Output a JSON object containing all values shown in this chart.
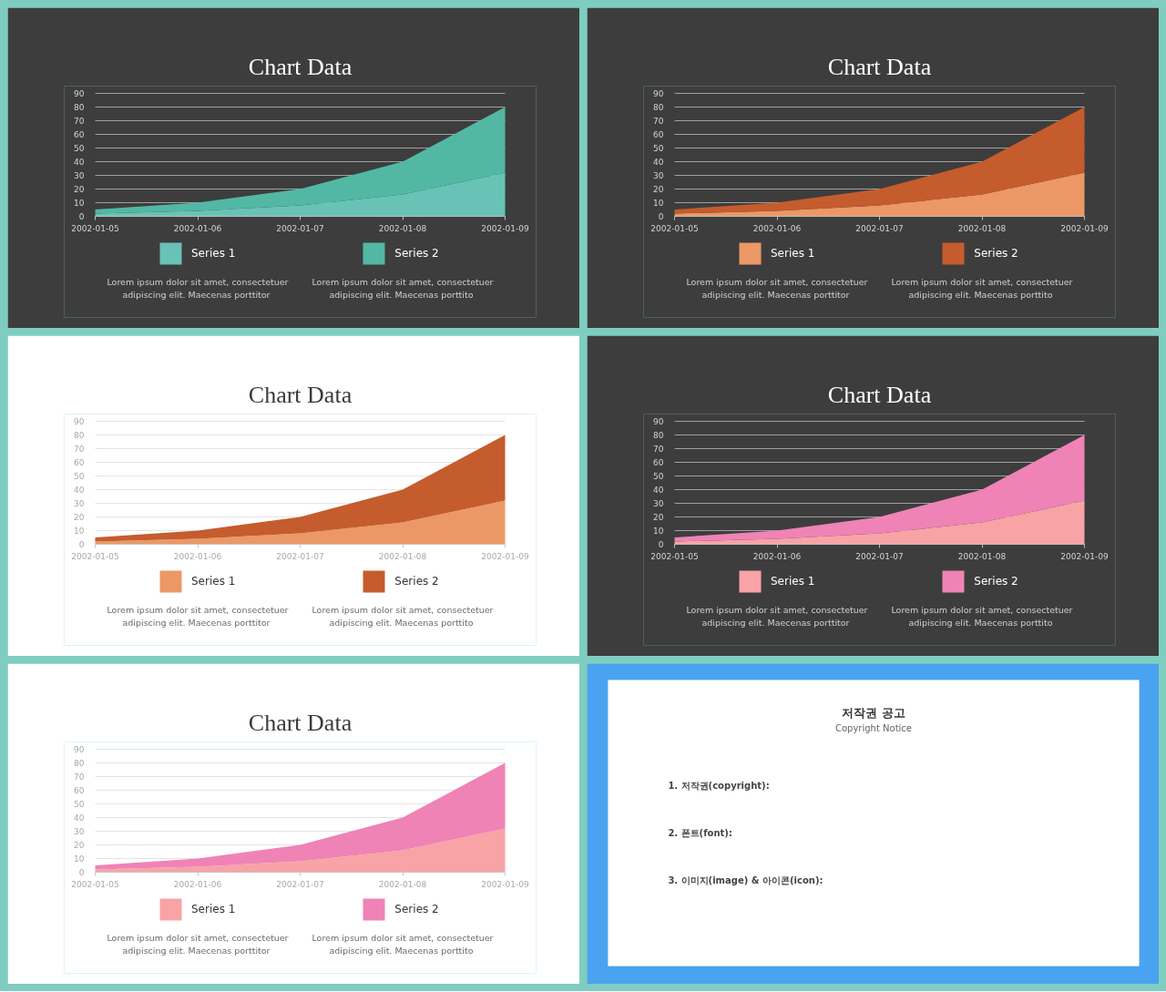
{
  "chart_data": [
    {
      "type": "area",
      "title": "Chart Data",
      "categories": [
        "2002-01-05",
        "2002-01-06",
        "2002-01-07",
        "2002-01-08",
        "2002-01-09"
      ],
      "stacked": true,
      "series": [
        {
          "name": "Series 1",
          "color": "#68c3b6",
          "values": [
            2,
            4,
            8,
            16,
            32
          ]
        },
        {
          "name": "Series 2",
          "color": "#52b8a3",
          "values": [
            3,
            6,
            12,
            24,
            48
          ]
        }
      ],
      "ylim": [
        0,
        90
      ],
      "yticks": [
        0,
        10,
        20,
        30,
        40,
        50,
        60,
        70,
        80,
        90
      ],
      "grid": "y",
      "legend": "bottom",
      "annotations": [
        "Lorem ipsum dolor sit amet, consectetuer\nadipiscing  elit. Maecenas porttitor",
        "Lorem ipsum dolor sit amet, consectetuer\nadipiscing  elit. Maecenas porttito"
      ]
    },
    {
      "type": "area",
      "title": "Chart Data",
      "categories": [
        "2002-01-05",
        "2002-01-06",
        "2002-01-07",
        "2002-01-08",
        "2002-01-09"
      ],
      "stacked": true,
      "series": [
        {
          "name": "Series 1",
          "color": "#eb9866",
          "values": [
            2,
            4,
            8,
            16,
            32
          ]
        },
        {
          "name": "Series 2",
          "color": "#c55c2d",
          "values": [
            3,
            6,
            12,
            24,
            48
          ]
        }
      ],
      "ylim": [
        0,
        90
      ],
      "yticks": [
        0,
        10,
        20,
        30,
        40,
        50,
        60,
        70,
        80,
        90
      ],
      "grid": "y",
      "legend": "bottom",
      "annotations": [
        "Lorem ipsum dolor sit amet, consectetuer\nadipiscing  elit. Maecenas porttitor",
        "Lorem ipsum dolor sit amet, consectetuer\nadipiscing  elit. Maecenas porttito"
      ]
    },
    {
      "type": "area",
      "title": "Chart Data",
      "categories": [
        "2002-01-05",
        "2002-01-06",
        "2002-01-07",
        "2002-01-08",
        "2002-01-09"
      ],
      "stacked": true,
      "series": [
        {
          "name": "Series 1",
          "color": "#eb9866",
          "values": [
            2,
            4,
            8,
            16,
            32
          ]
        },
        {
          "name": "Series 2",
          "color": "#c55c2d",
          "values": [
            3,
            6,
            12,
            24,
            48
          ]
        }
      ],
      "ylim": [
        0,
        90
      ],
      "yticks": [
        0,
        10,
        20,
        30,
        40,
        50,
        60,
        70,
        80,
        90
      ],
      "grid": "y",
      "legend": "bottom",
      "annotations": [
        "Lorem ipsum dolor sit amet, consectetuer\nadipiscing  elit. Maecenas porttitor",
        "Lorem ipsum dolor sit amet, consectetuer\nadipiscing  elit. Maecenas porttito"
      ]
    },
    {
      "type": "area",
      "title": "Chart Data",
      "categories": [
        "2002-01-05",
        "2002-01-06",
        "2002-01-07",
        "2002-01-08",
        "2002-01-09"
      ],
      "stacked": true,
      "series": [
        {
          "name": "Series 1",
          "color": "#f8a3a6",
          "values": [
            2,
            4,
            8,
            16,
            32
          ]
        },
        {
          "name": "Series 2",
          "color": "#ef83b5",
          "values": [
            3,
            6,
            12,
            24,
            48
          ]
        }
      ],
      "ylim": [
        0,
        90
      ],
      "yticks": [
        0,
        10,
        20,
        30,
        40,
        50,
        60,
        70,
        80,
        90
      ],
      "grid": "y",
      "legend": "bottom",
      "annotations": [
        "Lorem ipsum dolor sit amet, consectetuer\nadipiscing  elit. Maecenas porttitor",
        "Lorem ipsum dolor sit amet, consectetuer\nadipiscing  elit. Maecenas porttito"
      ]
    },
    {
      "type": "area",
      "title": "Chart Data",
      "categories": [
        "2002-01-05",
        "2002-01-06",
        "2002-01-07",
        "2002-01-08",
        "2002-01-09"
      ],
      "stacked": true,
      "series": [
        {
          "name": "Series 1",
          "color": "#f8a3a6",
          "values": [
            2,
            4,
            8,
            16,
            32
          ]
        },
        {
          "name": "Series 2",
          "color": "#ef83b5",
          "values": [
            3,
            6,
            12,
            24,
            48
          ]
        }
      ],
      "ylim": [
        0,
        90
      ],
      "yticks": [
        0,
        10,
        20,
        30,
        40,
        50,
        60,
        70,
        80,
        90
      ],
      "grid": "y",
      "legend": "bottom",
      "annotations": [
        "Lorem ipsum dolor sit amet, consectetuer\nadipiscing  elit. Maecenas porttitor",
        "Lorem ipsum dolor sit amet, consectetuer\nadipiscing  elit. Maecenas porttito"
      ]
    },
    {
      "type": "other",
      "title": "저작권 공고",
      "subtitle": "Copyright Notice",
      "annotations": [
        "1. 저작권(copyright):",
        "2. 폰트(font):",
        "3. 이미지(image) & 아이콘(icon):"
      ]
    }
  ]
}
